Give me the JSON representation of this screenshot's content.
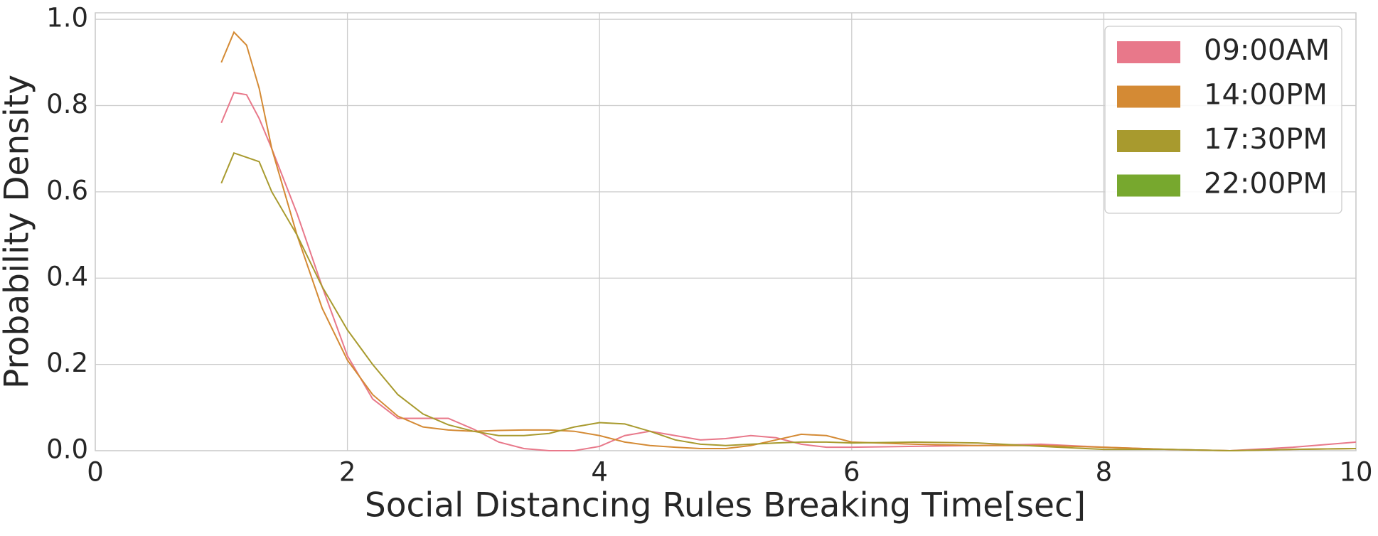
{
  "chart_data": {
    "type": "line",
    "xlabel": "Social Distancing Rules Breaking Time[sec]",
    "ylabel": "Probability Density",
    "x": [
      1.0,
      1.1,
      1.2,
      1.3,
      1.4,
      1.6,
      1.8,
      2.0,
      2.2,
      2.4,
      2.6,
      2.8,
      3.0,
      3.2,
      3.4,
      3.6,
      3.8,
      4.0,
      4.2,
      4.4,
      4.6,
      4.8,
      5.0,
      5.2,
      5.4,
      5.6,
      5.8,
      6.0,
      6.5,
      7.0,
      7.5,
      8.0,
      8.5,
      9.0,
      9.5,
      10.0
    ],
    "series": [
      {
        "name": "09:00AM",
        "color": "#e8788a",
        "values": [
          0.76,
          0.83,
          0.825,
          0.77,
          0.7,
          0.55,
          0.38,
          0.22,
          0.12,
          0.075,
          0.075,
          0.075,
          0.05,
          0.02,
          0.005,
          0.0,
          0.0,
          0.01,
          0.035,
          0.045,
          0.035,
          0.025,
          0.028,
          0.035,
          0.03,
          0.015,
          0.008,
          0.008,
          0.01,
          0.012,
          0.015,
          0.008,
          0.003,
          0.0,
          0.008,
          0.02
        ]
      },
      {
        "name": "14:00PM",
        "color": "#d48a34",
        "values": [
          0.9,
          0.97,
          0.94,
          0.84,
          0.7,
          0.5,
          0.33,
          0.21,
          0.13,
          0.08,
          0.055,
          0.048,
          0.045,
          0.047,
          0.048,
          0.048,
          0.045,
          0.035,
          0.02,
          0.012,
          0.008,
          0.005,
          0.005,
          0.012,
          0.025,
          0.038,
          0.035,
          0.02,
          0.015,
          0.012,
          0.012,
          0.008,
          0.003,
          0.0,
          0.003,
          0.005
        ]
      },
      {
        "name": "17:30PM",
        "color": "#a89a2e",
        "values": [
          0.62,
          0.69,
          0.68,
          0.67,
          0.6,
          0.5,
          0.38,
          0.28,
          0.2,
          0.13,
          0.085,
          0.06,
          0.045,
          0.035,
          0.035,
          0.04,
          0.055,
          0.065,
          0.062,
          0.045,
          0.025,
          0.015,
          0.012,
          0.015,
          0.018,
          0.02,
          0.02,
          0.018,
          0.02,
          0.018,
          0.01,
          0.003,
          0.003,
          0.0,
          0.003,
          0.005
        ]
      },
      {
        "name": "22:00PM",
        "color": "#77a82e",
        "values": [
          null,
          null,
          null,
          null,
          null,
          null,
          null,
          null,
          null,
          null,
          null,
          null,
          null,
          null,
          null,
          null,
          null,
          null,
          null,
          null,
          null,
          null,
          null,
          null,
          null,
          null,
          null,
          null,
          null,
          null,
          null,
          null,
          null,
          null,
          null,
          null
        ]
      }
    ],
    "xlim": [
      0,
      10
    ],
    "xticks": [
      0,
      2,
      4,
      6,
      8,
      10
    ],
    "ylim": [
      0,
      1.015
    ],
    "yticks": [
      {
        "value": 0,
        "label": "0.0"
      },
      0.2,
      0.4,
      0.6,
      0.8,
      {
        "value": 1,
        "label": "1.0"
      }
    ],
    "grid": true,
    "legend": "upper right"
  }
}
